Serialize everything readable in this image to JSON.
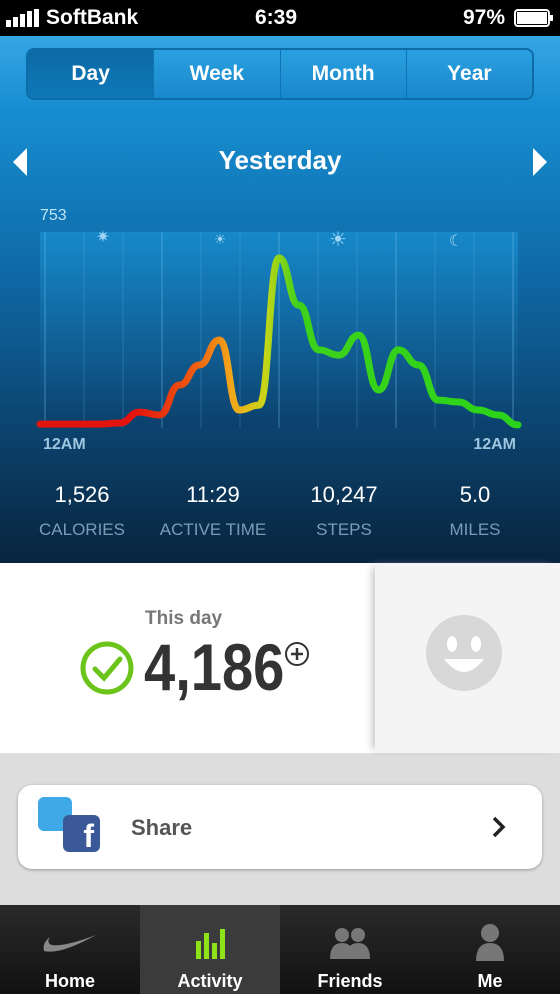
{
  "status_bar": {
    "carrier": "SoftBank",
    "time": "6:39",
    "battery": "97%"
  },
  "tabs": [
    {
      "label": "Day",
      "selected": true
    },
    {
      "label": "Week",
      "selected": false
    },
    {
      "label": "Month",
      "selected": false
    },
    {
      "label": "Year",
      "selected": false
    }
  ],
  "chart": {
    "type": "line",
    "title": "Yesterday",
    "ylim": [
      0,
      753
    ],
    "yticks": [
      753
    ],
    "x_labels": [
      "12AM",
      "12AM"
    ],
    "values": [
      15,
      15,
      15,
      15,
      19,
      61,
      50,
      165,
      242,
      338,
      69,
      88,
      653,
      472,
      300,
      280,
      357,
      146,
      300,
      242,
      107,
      100,
      69,
      50,
      12
    ]
  },
  "stats": [
    {
      "value": "1,526",
      "label": "CALORIES"
    },
    {
      "value": "11:29",
      "label": "ACTIVE TIME"
    },
    {
      "value": "10,247",
      "label": "STEPS"
    },
    {
      "value": "5.0",
      "label": "MILES"
    }
  ],
  "summary": {
    "caption": "This day",
    "value": "4,186"
  },
  "share": {
    "label": "Share"
  },
  "nav": [
    {
      "label": "Home",
      "selected": false
    },
    {
      "label": "Activity",
      "selected": true
    },
    {
      "label": "Friends",
      "selected": false
    },
    {
      "label": "Me",
      "selected": false
    }
  ]
}
